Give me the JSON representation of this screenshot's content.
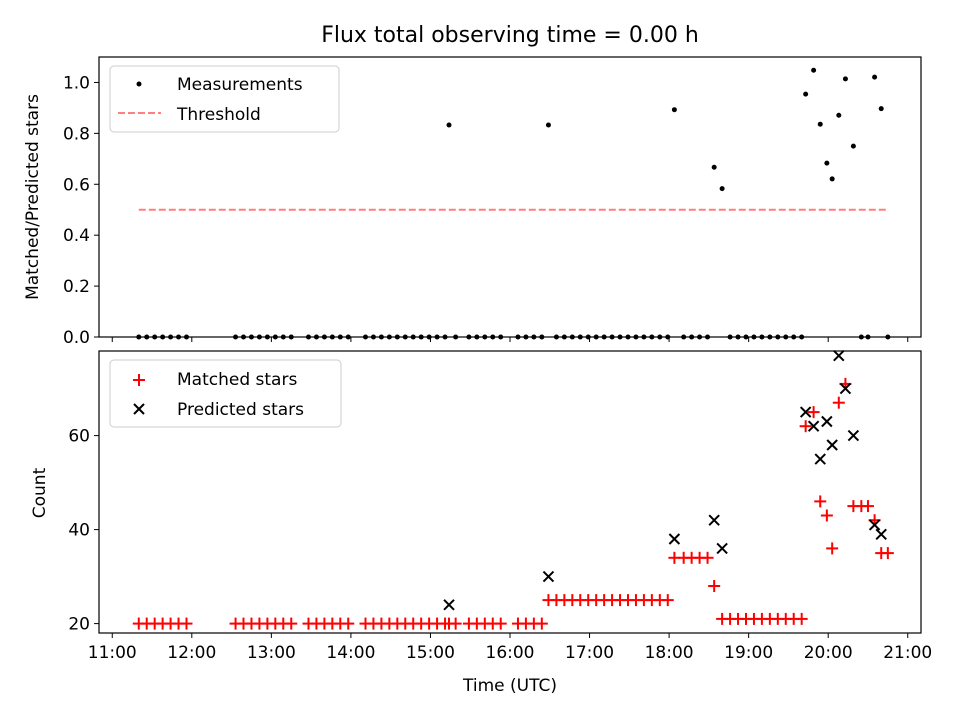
{
  "colors": {
    "measurement": "#000000",
    "threshold": "#ff7f7f",
    "matched": "#ff0000",
    "predicted": "#000000"
  },
  "figure": {
    "title": "Flux total observing time = 0.00 h"
  },
  "chart_data": [
    {
      "type": "scatter",
      "panel": "top",
      "title": "Flux total observing time = 0.00 h",
      "xlabel": "",
      "ylabel": "Matched/Predicted stars",
      "xlim": [
        "10:50",
        "21:10"
      ],
      "ylim": [
        0.0,
        1.1
      ],
      "yticks": [
        0.0,
        0.2,
        0.4,
        0.6,
        0.8,
        1.0
      ],
      "ytick_labels": [
        "0.0",
        "0.2",
        "0.4",
        "0.6",
        "0.8",
        "1.0"
      ],
      "grid": false,
      "legend": "top-left",
      "series": [
        {
          "name": "Measurements",
          "style": "dot",
          "points": [
            [
              "11:20",
              0
            ],
            [
              "11:26",
              0
            ],
            [
              "11:32",
              0
            ],
            [
              "11:38",
              0
            ],
            [
              "11:44",
              0
            ],
            [
              "11:50",
              0
            ],
            [
              "11:56",
              0
            ],
            [
              "12:33",
              0
            ],
            [
              "12:39",
              0
            ],
            [
              "12:45",
              0
            ],
            [
              "12:51",
              0
            ],
            [
              "12:57",
              0
            ],
            [
              "13:03",
              0
            ],
            [
              "13:09",
              0
            ],
            [
              "13:15",
              0
            ],
            [
              "13:28",
              0
            ],
            [
              "13:34",
              0
            ],
            [
              "13:40",
              0
            ],
            [
              "13:46",
              0
            ],
            [
              "13:52",
              0
            ],
            [
              "13:58",
              0
            ],
            [
              "14:11",
              0
            ],
            [
              "14:17",
              0
            ],
            [
              "14:23",
              0
            ],
            [
              "14:29",
              0
            ],
            [
              "14:35",
              0
            ],
            [
              "14:41",
              0
            ],
            [
              "14:47",
              0
            ],
            [
              "14:53",
              0
            ],
            [
              "14:59",
              0
            ],
            [
              "15:05",
              0
            ],
            [
              "15:11",
              0
            ],
            [
              "15:14",
              0.833
            ],
            [
              "15:19",
              0
            ],
            [
              "15:29",
              0
            ],
            [
              "15:35",
              0
            ],
            [
              "15:41",
              0
            ],
            [
              "15:47",
              0
            ],
            [
              "15:53",
              0
            ],
            [
              "16:06",
              0
            ],
            [
              "16:12",
              0
            ],
            [
              "16:18",
              0
            ],
            [
              "16:24",
              0
            ],
            [
              "16:29",
              0.833
            ],
            [
              "16:35",
              0
            ],
            [
              "16:41",
              0
            ],
            [
              "16:47",
              0
            ],
            [
              "16:53",
              0
            ],
            [
              "16:59",
              0
            ],
            [
              "17:05",
              0
            ],
            [
              "17:11",
              0
            ],
            [
              "17:17",
              0
            ],
            [
              "17:23",
              0
            ],
            [
              "17:29",
              0
            ],
            [
              "17:35",
              0
            ],
            [
              "17:41",
              0
            ],
            [
              "17:47",
              0
            ],
            [
              "17:53",
              0
            ],
            [
              "17:59",
              0
            ],
            [
              "18:04",
              0.893
            ],
            [
              "18:11",
              0
            ],
            [
              "18:17",
              0
            ],
            [
              "18:23",
              0
            ],
            [
              "18:29",
              0
            ],
            [
              "18:34",
              0.667
            ],
            [
              "18:40",
              0.583
            ],
            [
              "18:46",
              0
            ],
            [
              "18:52",
              0
            ],
            [
              "18:58",
              0
            ],
            [
              "19:04",
              0
            ],
            [
              "19:10",
              0
            ],
            [
              "19:16",
              0
            ],
            [
              "19:22",
              0
            ],
            [
              "19:28",
              0
            ],
            [
              "19:34",
              0
            ],
            [
              "19:40",
              0
            ],
            [
              "19:43",
              0.954
            ],
            [
              "19:49",
              1.048
            ],
            [
              "19:54",
              0.836
            ],
            [
              "19:59",
              0.683
            ],
            [
              "20:03",
              0.621
            ],
            [
              "20:08",
              0.871
            ],
            [
              "20:13",
              1.014
            ],
            [
              "20:19",
              0.75
            ],
            [
              "20:25",
              0
            ],
            [
              "20:30",
              0
            ],
            [
              "20:35",
              1.021
            ],
            [
              "20:40",
              0.897
            ],
            [
              "20:45",
              0
            ]
          ]
        },
        {
          "name": "Threshold",
          "style": "dashed-line",
          "points": [
            [
              "11:20",
              0.5
            ],
            [
              "20:45",
              0.5
            ]
          ]
        }
      ]
    },
    {
      "type": "scatter",
      "panel": "bottom",
      "title": "",
      "xlabel": "Time (UTC)",
      "ylabel": "Count",
      "xlim": [
        "10:50",
        "21:10"
      ],
      "ylim": [
        18,
        78
      ],
      "yticks": [
        20,
        40,
        60
      ],
      "ytick_labels": [
        "20",
        "40",
        "60"
      ],
      "xticks": [
        "11:00",
        "12:00",
        "13:00",
        "14:00",
        "15:00",
        "16:00",
        "17:00",
        "18:00",
        "19:00",
        "20:00",
        "21:00"
      ],
      "grid": false,
      "legend": "top-left",
      "series": [
        {
          "name": "Matched stars",
          "style": "plus",
          "points": [
            [
              "11:20",
              20
            ],
            [
              "11:26",
              20
            ],
            [
              "11:32",
              20
            ],
            [
              "11:38",
              20
            ],
            [
              "11:44",
              20
            ],
            [
              "11:50",
              20
            ],
            [
              "11:56",
              20
            ],
            [
              "12:33",
              20
            ],
            [
              "12:39",
              20
            ],
            [
              "12:45",
              20
            ],
            [
              "12:51",
              20
            ],
            [
              "12:57",
              20
            ],
            [
              "13:03",
              20
            ],
            [
              "13:09",
              20
            ],
            [
              "13:15",
              20
            ],
            [
              "13:28",
              20
            ],
            [
              "13:34",
              20
            ],
            [
              "13:40",
              20
            ],
            [
              "13:46",
              20
            ],
            [
              "13:52",
              20
            ],
            [
              "13:58",
              20
            ],
            [
              "14:11",
              20
            ],
            [
              "14:17",
              20
            ],
            [
              "14:23",
              20
            ],
            [
              "14:29",
              20
            ],
            [
              "14:35",
              20
            ],
            [
              "14:41",
              20
            ],
            [
              "14:47",
              20
            ],
            [
              "14:53",
              20
            ],
            [
              "14:59",
              20
            ],
            [
              "15:05",
              20
            ],
            [
              "15:11",
              20
            ],
            [
              "15:14",
              20
            ],
            [
              "15:19",
              20
            ],
            [
              "15:29",
              20
            ],
            [
              "15:35",
              20
            ],
            [
              "15:41",
              20
            ],
            [
              "15:47",
              20
            ],
            [
              "15:53",
              20
            ],
            [
              "16:06",
              20
            ],
            [
              "16:12",
              20
            ],
            [
              "16:18",
              20
            ],
            [
              "16:24",
              20
            ],
            [
              "16:29",
              25
            ],
            [
              "16:35",
              25
            ],
            [
              "16:41",
              25
            ],
            [
              "16:47",
              25
            ],
            [
              "16:53",
              25
            ],
            [
              "16:59",
              25
            ],
            [
              "17:05",
              25
            ],
            [
              "17:11",
              25
            ],
            [
              "17:17",
              25
            ],
            [
              "17:23",
              25
            ],
            [
              "17:29",
              25
            ],
            [
              "17:35",
              25
            ],
            [
              "17:41",
              25
            ],
            [
              "17:47",
              25
            ],
            [
              "17:53",
              25
            ],
            [
              "17:59",
              25
            ],
            [
              "18:04",
              34
            ],
            [
              "18:11",
              34
            ],
            [
              "18:17",
              34
            ],
            [
              "18:23",
              34
            ],
            [
              "18:29",
              34
            ],
            [
              "18:34",
              28
            ],
            [
              "18:40",
              21
            ],
            [
              "18:46",
              21
            ],
            [
              "18:52",
              21
            ],
            [
              "18:58",
              21
            ],
            [
              "19:04",
              21
            ],
            [
              "19:10",
              21
            ],
            [
              "19:16",
              21
            ],
            [
              "19:22",
              21
            ],
            [
              "19:28",
              21
            ],
            [
              "19:34",
              21
            ],
            [
              "19:40",
              21
            ],
            [
              "19:43",
              62
            ],
            [
              "19:49",
              65
            ],
            [
              "19:54",
              46
            ],
            [
              "19:59",
              43
            ],
            [
              "20:03",
              36
            ],
            [
              "20:08",
              67
            ],
            [
              "20:13",
              71
            ],
            [
              "20:19",
              45
            ],
            [
              "20:25",
              45
            ],
            [
              "20:30",
              45
            ],
            [
              "20:35",
              42
            ],
            [
              "20:40",
              35
            ],
            [
              "20:45",
              35
            ]
          ]
        },
        {
          "name": "Predicted stars",
          "style": "x",
          "points": [
            [
              "15:14",
              24
            ],
            [
              "16:29",
              30
            ],
            [
              "18:04",
              38
            ],
            [
              "18:34",
              42
            ],
            [
              "18:40",
              36
            ],
            [
              "19:43",
              65
            ],
            [
              "19:49",
              62
            ],
            [
              "19:54",
              55
            ],
            [
              "19:59",
              63
            ],
            [
              "20:03",
              58
            ],
            [
              "20:08",
              77
            ],
            [
              "20:13",
              70
            ],
            [
              "20:19",
              60
            ],
            [
              "20:35",
              41
            ],
            [
              "20:40",
              39
            ]
          ]
        }
      ]
    }
  ]
}
